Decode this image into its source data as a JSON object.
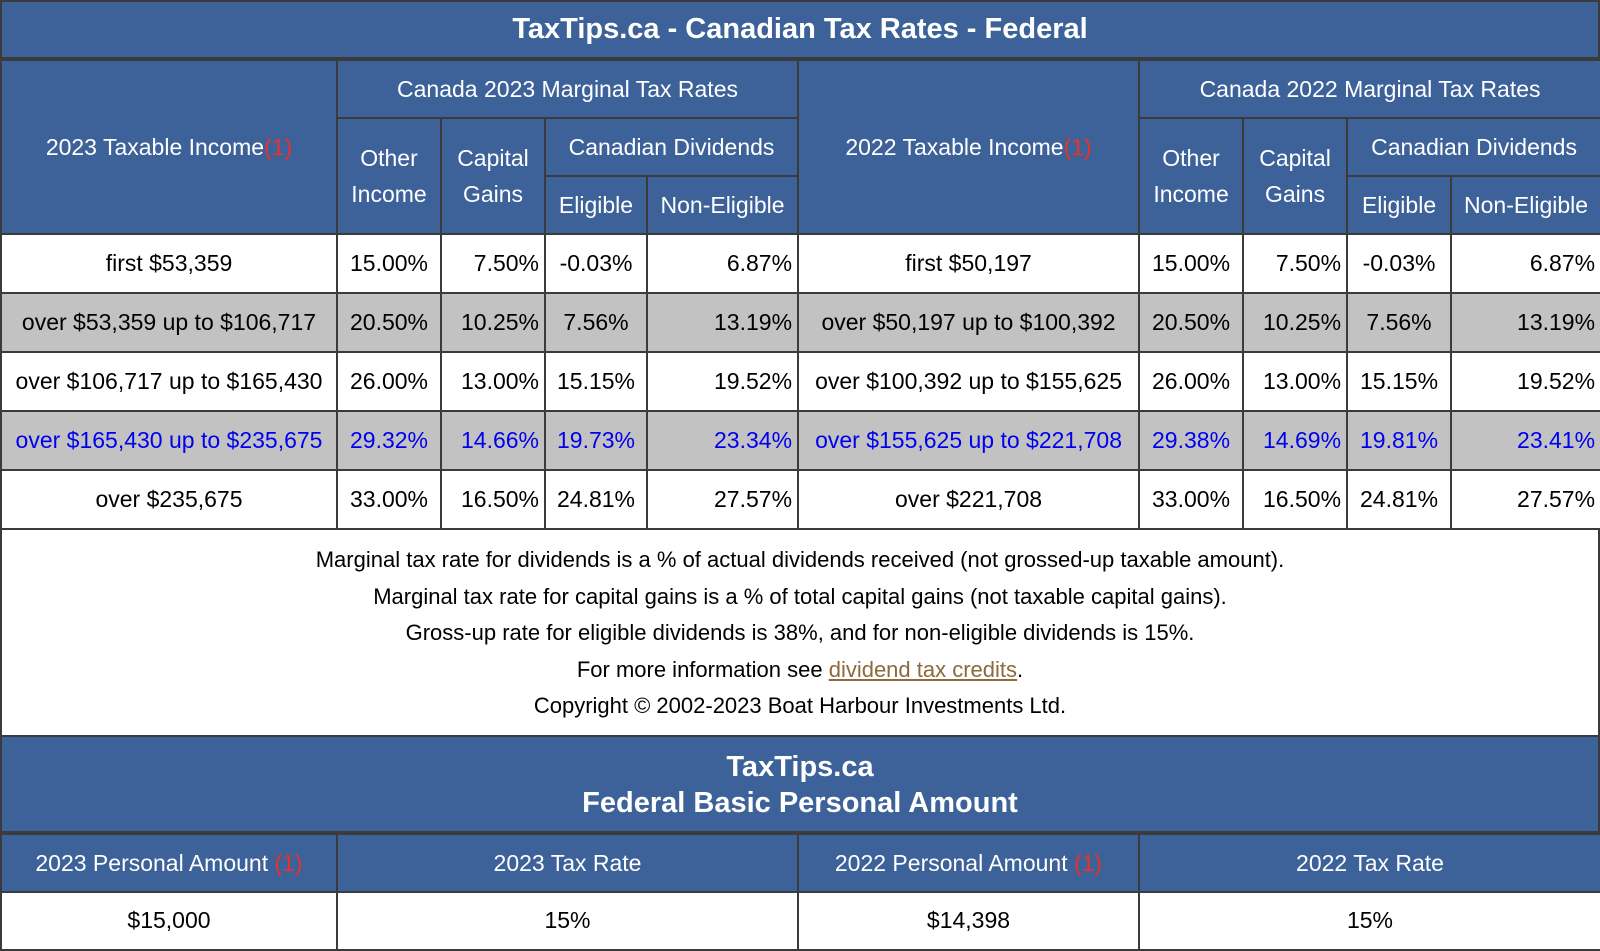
{
  "title": "TaxTips.ca - Canadian Tax Rates - Federal",
  "headers": {
    "income_2023": "2023 Taxable Income",
    "income_2022": "2022 Taxable Income",
    "ref_marker": "(1)",
    "rates_2023": "Canada 2023 Marginal Tax Rates",
    "rates_2022": "Canada 2022 Marginal Tax Rates",
    "other_income_line1": "Other",
    "other_income_line2": "Income",
    "capital_gains_line1": "Capital",
    "capital_gains_line2": "Gains",
    "canadian_dividends": "Canadian Dividends",
    "eligible": "Eligible",
    "non_eligible": "Non-Eligible"
  },
  "rows": [
    {
      "income_2023": "first $53,359",
      "other_2023": "15.00%",
      "cg_2023": "7.50%",
      "elig_2023": "-0.03%",
      "nonelig_2023": "6.87%",
      "income_2022": "first $50,197",
      "other_2022": "15.00%",
      "cg_2022": "7.50%",
      "elig_2022": "-0.03%",
      "nonelig_2022": "6.87%"
    },
    {
      "income_2023": "over $53,359 up to $106,717",
      "other_2023": "20.50%",
      "cg_2023": "10.25%",
      "elig_2023": "7.56%",
      "nonelig_2023": "13.19%",
      "income_2022": "over $50,197 up to $100,392",
      "other_2022": "20.50%",
      "cg_2022": "10.25%",
      "elig_2022": "7.56%",
      "nonelig_2022": "13.19%"
    },
    {
      "income_2023": "over $106,717 up to $165,430",
      "other_2023": "26.00%",
      "cg_2023": "13.00%",
      "elig_2023": "15.15%",
      "nonelig_2023": "19.52%",
      "income_2022": "over $100,392 up to $155,625",
      "other_2022": "26.00%",
      "cg_2022": "13.00%",
      "elig_2022": "15.15%",
      "nonelig_2022": "19.52%"
    },
    {
      "income_2023": "over $165,430 up to $235,675",
      "other_2023": "29.32%",
      "cg_2023": "14.66%",
      "elig_2023": "19.73%",
      "nonelig_2023": "23.34%",
      "income_2022": "over $155,625 up to $221,708",
      "other_2022": "29.38%",
      "cg_2022": "14.69%",
      "elig_2022": "19.81%",
      "nonelig_2022": "23.41%"
    },
    {
      "income_2023": "over $235,675",
      "other_2023": "33.00%",
      "cg_2023": "16.50%",
      "elig_2023": "24.81%",
      "nonelig_2023": "27.57%",
      "income_2022": "over $221,708",
      "other_2022": "33.00%",
      "cg_2022": "16.50%",
      "elig_2022": "24.81%",
      "nonelig_2022": "27.57%"
    }
  ],
  "notes": {
    "line1": "Marginal tax rate for dividends is a % of actual dividends received (not grossed-up taxable amount).",
    "line2": "Marginal tax rate for capital gains is a % of total capital gains (not taxable capital gains).",
    "line3": "Gross-up rate for eligible dividends is 38%, and for non-eligible dividends is 15%.",
    "line4_prefix": "For more information see ",
    "line4_link": "dividend tax credits",
    "line4_suffix": ".",
    "copyright": "Copyright © 2002-2023 Boat Harbour Investments Ltd."
  },
  "bpa": {
    "title_line1": "TaxTips.ca",
    "title_line2": "Federal Basic Personal Amount",
    "col_2023_amount": "2023 Personal Amount ",
    "col_2023_rate": "2023 Tax Rate",
    "col_2022_amount": "2022 Personal Amount ",
    "col_2022_rate": "2022 Tax Rate",
    "ref_marker": "(1)",
    "amount_2023": "$15,000",
    "rate_2023": "15%",
    "amount_2022": "$14,398",
    "rate_2022": "15%"
  },
  "colors": {
    "header_bg": "#3d6299",
    "highlight_row_text": "#0000ee",
    "shaded_row_bg": "#c2c2c2",
    "ref_marker": "#e8322a",
    "link": "#8b6a3b"
  }
}
